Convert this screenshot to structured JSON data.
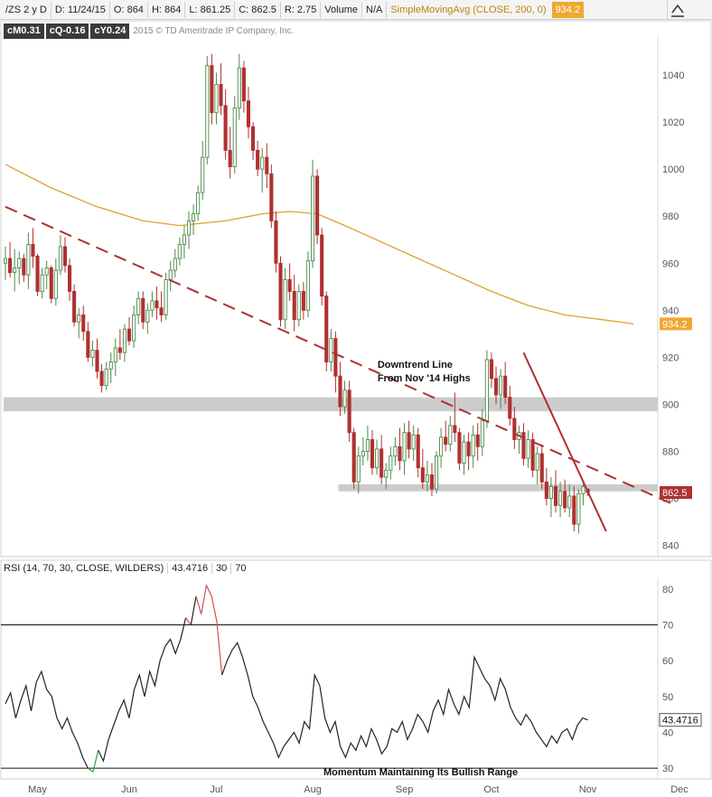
{
  "header": {
    "symbol": "/ZS 2 y D",
    "date": "D: 11/24/15",
    "open": "O: 864",
    "high": "H: 864",
    "low": "L: 861.25",
    "close": "C: 862.5",
    "range": "R: 2.75",
    "volume_label": "Volume",
    "volume_value": "N/A",
    "study_label": "SimpleMovingAvg (CLOSE, 200, 0)",
    "study_value": "934.2",
    "expand_icon": "collapse-arrow-icon"
  },
  "stats": {
    "month_change": "cM0.31",
    "quarter_change": "cQ-0.16",
    "year_change": "cY0.24",
    "copyright": "2015 © TD Ameritrade IP Company, Inc."
  },
  "rsi_header": {
    "label": "RSI (14, 70, 30, CLOSE, WILDERS)",
    "value": "43.4716",
    "oversold": "30",
    "overbought": "70"
  },
  "colors": {
    "up": "#4a8a4a",
    "down": "#b03030",
    "sma": "#e0a030",
    "trendline": "#b03030",
    "support_band": "#cccccc",
    "price_tag": "#b03030",
    "sma_tag": "#f0a830",
    "rsi_line": "#222222"
  },
  "chart_data": [
    {
      "type": "candlestick",
      "name": "price",
      "y_range": [
        836,
        1055
      ],
      "y_ticks": [
        840,
        860,
        880,
        900,
        920,
        940,
        960,
        980,
        1000,
        1020,
        1040
      ],
      "x_range": [
        0,
        138
      ],
      "x_tick_labels": [
        {
          "x": 7,
          "label": "May"
        },
        {
          "x": 27,
          "label": "Jun"
        },
        {
          "x": 46,
          "label": "Jul"
        },
        {
          "x": 67,
          "label": "Aug"
        },
        {
          "x": 87,
          "label": "Sep"
        },
        {
          "x": 106,
          "label": "Oct"
        },
        {
          "x": 127,
          "label": "Nov"
        },
        {
          "x": 147,
          "label": "Dec"
        }
      ],
      "last_price": "862.5",
      "sma_value": "934.2",
      "candles": [
        [
          960,
          967,
          953,
          962
        ],
        [
          962,
          969,
          954,
          956
        ],
        [
          956,
          966,
          948,
          958
        ],
        [
          958,
          965,
          951,
          962
        ],
        [
          962,
          964,
          952,
          955
        ],
        [
          955,
          973,
          949,
          968
        ],
        [
          968,
          975,
          958,
          963
        ],
        [
          963,
          964,
          946,
          948
        ],
        [
          948,
          958,
          945,
          955
        ],
        [
          955,
          961,
          949,
          958
        ],
        [
          958,
          959,
          943,
          945
        ],
        [
          945,
          962,
          942,
          957
        ],
        [
          957,
          972,
          955,
          967
        ],
        [
          967,
          971,
          956,
          959
        ],
        [
          959,
          962,
          944,
          948
        ],
        [
          948,
          951,
          933,
          935
        ],
        [
          935,
          941,
          928,
          938
        ],
        [
          938,
          942,
          927,
          931
        ],
        [
          931,
          935,
          918,
          920
        ],
        [
          920,
          927,
          916,
          923
        ],
        [
          923,
          928,
          911,
          914
        ],
        [
          914,
          917,
          905,
          908
        ],
        [
          908,
          918,
          906,
          915
        ],
        [
          915,
          922,
          909,
          918
        ],
        [
          918,
          928,
          912,
          924
        ],
        [
          924,
          932,
          919,
          922
        ],
        [
          922,
          934,
          918,
          932
        ],
        [
          932,
          937,
          925,
          927
        ],
        [
          927,
          942,
          924,
          938
        ],
        [
          938,
          948,
          934,
          945
        ],
        [
          945,
          948,
          932,
          935
        ],
        [
          935,
          943,
          930,
          940
        ],
        [
          940,
          948,
          937,
          944
        ],
        [
          944,
          950,
          936,
          941
        ],
        [
          941,
          948,
          935,
          938
        ],
        [
          938,
          956,
          936,
          953
        ],
        [
          953,
          961,
          948,
          957
        ],
        [
          957,
          966,
          954,
          962
        ],
        [
          962,
          971,
          959,
          968
        ],
        [
          968,
          976,
          962,
          972
        ],
        [
          972,
          982,
          966,
          978
        ],
        [
          978,
          985,
          972,
          981
        ],
        [
          981,
          993,
          978,
          990
        ],
        [
          990,
          1012,
          987,
          1005
        ],
        [
          1005,
          1048,
          1002,
          1044
        ],
        [
          1044,
          1049,
          1019,
          1024
        ],
        [
          1024,
          1041,
          1019,
          1036
        ],
        [
          1036,
          1045,
          1023,
          1027
        ],
        [
          1027,
          1034,
          1004,
          1008
        ],
        [
          1008,
          1018,
          996,
          1001
        ],
        [
          1001,
          1031,
          998,
          1026
        ],
        [
          1026,
          1049,
          1021,
          1043
        ],
        [
          1043,
          1046,
          1024,
          1029
        ],
        [
          1029,
          1035,
          1013,
          1018
        ],
        [
          1018,
          1020,
          1004,
          1008
        ],
        [
          1008,
          1012,
          997,
          1000
        ],
        [
          1000,
          1009,
          990,
          1005
        ],
        [
          1005,
          1011,
          992,
          998
        ],
        [
          998,
          1002,
          975,
          978
        ],
        [
          978,
          982,
          956,
          960
        ],
        [
          960,
          963,
          933,
          936
        ],
        [
          936,
          958,
          932,
          953
        ],
        [
          953,
          960,
          944,
          948
        ],
        [
          948,
          955,
          931,
          936
        ],
        [
          936,
          951,
          933,
          948
        ],
        [
          948,
          952,
          936,
          940
        ],
        [
          940,
          965,
          937,
          961
        ],
        [
          961,
          1004,
          958,
          997
        ],
        [
          997,
          1000,
          968,
          972
        ],
        [
          972,
          975,
          942,
          946
        ],
        [
          946,
          948,
          914,
          918
        ],
        [
          918,
          932,
          914,
          928
        ],
        [
          928,
          931,
          905,
          912
        ],
        [
          912,
          918,
          895,
          899
        ],
        [
          899,
          910,
          896,
          906
        ],
        [
          906,
          910,
          884,
          888
        ],
        [
          888,
          890,
          864,
          867
        ],
        [
          867,
          882,
          862,
          878
        ],
        [
          878,
          886,
          874,
          880
        ],
        [
          880,
          891,
          876,
          885
        ],
        [
          885,
          889,
          870,
          873
        ],
        [
          873,
          885,
          870,
          881
        ],
        [
          881,
          887,
          866,
          869
        ],
        [
          869,
          875,
          864,
          872
        ],
        [
          872,
          882,
          868,
          878
        ],
        [
          878,
          886,
          874,
          882
        ],
        [
          882,
          890,
          872,
          876
        ],
        [
          876,
          892,
          870,
          888
        ],
        [
          888,
          893,
          877,
          881
        ],
        [
          881,
          891,
          876,
          887
        ],
        [
          887,
          890,
          869,
          873
        ],
        [
          873,
          881,
          864,
          867
        ],
        [
          867,
          876,
          863,
          870
        ],
        [
          870,
          875,
          861,
          864
        ],
        [
          864,
          880,
          862,
          878
        ],
        [
          878,
          890,
          873,
          886
        ],
        [
          886,
          893,
          880,
          883
        ],
        [
          883,
          895,
          880,
          891
        ],
        [
          891,
          905,
          884,
          888
        ],
        [
          888,
          890,
          872,
          875
        ],
        [
          875,
          887,
          870,
          884
        ],
        [
          884,
          888,
          872,
          878
        ],
        [
          878,
          891,
          873,
          887
        ],
        [
          887,
          892,
          876,
          882
        ],
        [
          882,
          898,
          878,
          893
        ],
        [
          893,
          923,
          890,
          919
        ],
        [
          919,
          922,
          907,
          911
        ],
        [
          911,
          916,
          900,
          904
        ],
        [
          904,
          915,
          898,
          912
        ],
        [
          912,
          918,
          900,
          903
        ],
        [
          903,
          908,
          891,
          894
        ],
        [
          894,
          899,
          881,
          885
        ],
        [
          885,
          891,
          879,
          888
        ],
        [
          888,
          892,
          874,
          877
        ],
        [
          877,
          889,
          873,
          885
        ],
        [
          885,
          888,
          869,
          872
        ],
        [
          872,
          882,
          866,
          879
        ],
        [
          879,
          883,
          864,
          867
        ],
        [
          867,
          873,
          857,
          860
        ],
        [
          860,
          869,
          852,
          865
        ],
        [
          865,
          872,
          854,
          857
        ],
        [
          857,
          867,
          852,
          863
        ],
        [
          863,
          868,
          854,
          856
        ],
        [
          856,
          866,
          852,
          861
        ],
        [
          861,
          865,
          846,
          849
        ],
        [
          849,
          864,
          845,
          862
        ],
        [
          862,
          867,
          857,
          865
        ],
        [
          864,
          864,
          861,
          862.5
        ]
      ],
      "sma": [
        [
          0,
          1002
        ],
        [
          10,
          992
        ],
        [
          20,
          984
        ],
        [
          30,
          978
        ],
        [
          38,
          976
        ],
        [
          48,
          978
        ],
        [
          56,
          981
        ],
        [
          62,
          982
        ],
        [
          68,
          981
        ],
        [
          74,
          976
        ],
        [
          82,
          969
        ],
        [
          90,
          962
        ],
        [
          98,
          955
        ],
        [
          106,
          948
        ],
        [
          114,
          942
        ],
        [
          122,
          938
        ],
        [
          130,
          936
        ],
        [
          137,
          934.2
        ]
      ],
      "trendlines": [
        {
          "style": "dashed",
          "points": [
            [
              0,
              984
            ],
            [
              145,
              858
            ]
          ]
        },
        {
          "style": "solid",
          "points": [
            [
              113,
              922
            ],
            [
              131,
              846
            ]
          ]
        }
      ],
      "support_bands": [
        {
          "low": 897,
          "high": 903,
          "from_x": 0
        },
        {
          "low": 863,
          "high": 866,
          "from_x": 73
        }
      ],
      "annotation": {
        "text": [
          "Downtrend Line",
          "From Nov '14 Highs"
        ],
        "x": 91,
        "y": 917
      }
    },
    {
      "type": "line",
      "name": "RSI",
      "y_range": [
        28,
        83
      ],
      "y_ticks": [
        30,
        40,
        50,
        60,
        70,
        80
      ],
      "levels": [
        70,
        30
      ],
      "last_value": "43.4716",
      "annotation": "Momentum Maintaining Its Bullish Range",
      "values": [
        48,
        51,
        44,
        49,
        53,
        46,
        54,
        57,
        52,
        50,
        44,
        41,
        44,
        40,
        37,
        33,
        30,
        29,
        35,
        32,
        38,
        42,
        46,
        49,
        44,
        52,
        56,
        50,
        57,
        53,
        60,
        64,
        66,
        62,
        66,
        72,
        70,
        78,
        73,
        81,
        78,
        71,
        56,
        60,
        63,
        65,
        61,
        56,
        50,
        47,
        43,
        40,
        37,
        33,
        36,
        38,
        40,
        37,
        43,
        41,
        56,
        53,
        44,
        40,
        43,
        36,
        33,
        37,
        35,
        39,
        36,
        41,
        38,
        34,
        36,
        41,
        40,
        43,
        38,
        41,
        45,
        43,
        40,
        46,
        49,
        45,
        52,
        48,
        45,
        50,
        47,
        61,
        58,
        55,
        53,
        49,
        55,
        52,
        47,
        44,
        42,
        45,
        43,
        40,
        38,
        36,
        39,
        37,
        40,
        41,
        38,
        42,
        44,
        43.47
      ]
    }
  ]
}
